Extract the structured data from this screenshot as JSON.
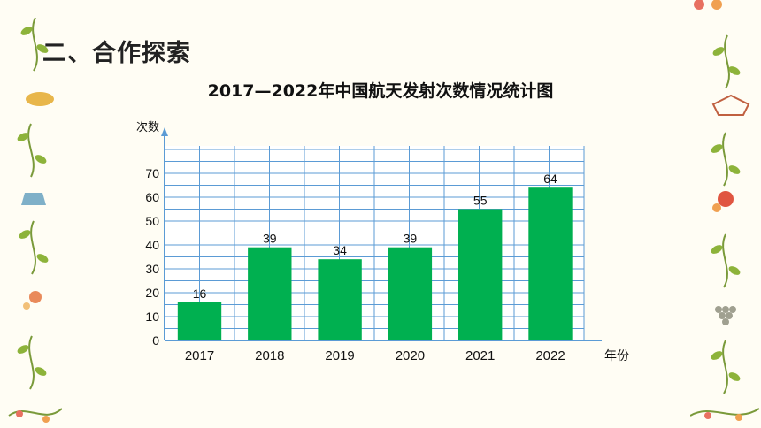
{
  "section_title": "二、合作探索",
  "colors": {
    "bar": "#00b050",
    "grid": "#5b9bd5",
    "axis": "#5b9bd5",
    "background": "#fffdf4"
  },
  "chart_data": {
    "type": "bar",
    "title": "2017—2022年中国航天发射次数情况统计图",
    "xlabel": "年份",
    "ylabel": "次数",
    "categories": [
      "2017",
      "2018",
      "2019",
      "2020",
      "2021",
      "2022"
    ],
    "values": [
      16,
      39,
      34,
      39,
      55,
      64
    ],
    "yticks": [
      0,
      10,
      20,
      30,
      40,
      50,
      60,
      70
    ],
    "ylim": [
      0,
      80
    ],
    "grid": true,
    "data_labels": true
  }
}
